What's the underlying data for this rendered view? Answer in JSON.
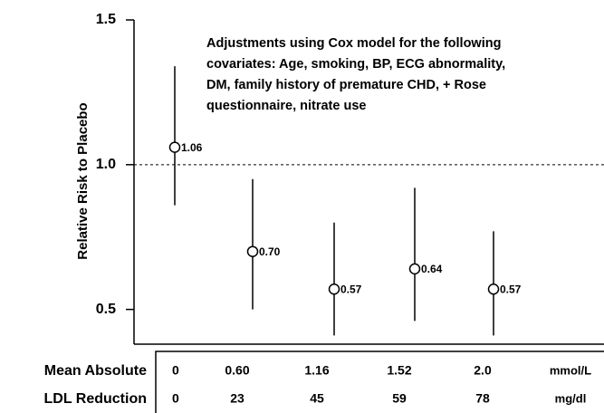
{
  "chart_data": {
    "type": "errorbar",
    "y_label": "Relative Risk to Placebo",
    "annotation": [
      "Adjustments using Cox model for the following",
      "covariates: Age, smoking, BP, ECG abnormality,",
      "DM, family history of premature CHD, + Rose",
      "questionnaire, nitrate use"
    ],
    "values": [
      1.06,
      0.7,
      0.57,
      0.64,
      0.57
    ],
    "value_labels": [
      "1.06",
      "0.70",
      "0.57",
      "0.64",
      "0.57"
    ],
    "lower": [
      0.86,
      0.5,
      0.41,
      0.46,
      0.41
    ],
    "upper": [
      1.34,
      0.95,
      0.8,
      0.92,
      0.77
    ],
    "ylim": [
      0.38,
      1.5
    ],
    "yticks": [
      {
        "value": 1.5,
        "label": "1.5"
      },
      {
        "value": 1.0,
        "label": "1.0"
      },
      {
        "value": 0.5,
        "label": "0.5"
      }
    ],
    "reference_line": 1,
    "color": "#000000",
    "table": [
      {
        "label": "Mean Absolute",
        "cells": [
          "0",
          "0.60",
          "1.16",
          "1.52",
          "2.0"
        ],
        "unit": "mmol/L"
      },
      {
        "label": "LDL Reduction",
        "cells": [
          "0",
          "23",
          "45",
          "59",
          "78"
        ],
        "unit": "mg/dl"
      }
    ]
  }
}
